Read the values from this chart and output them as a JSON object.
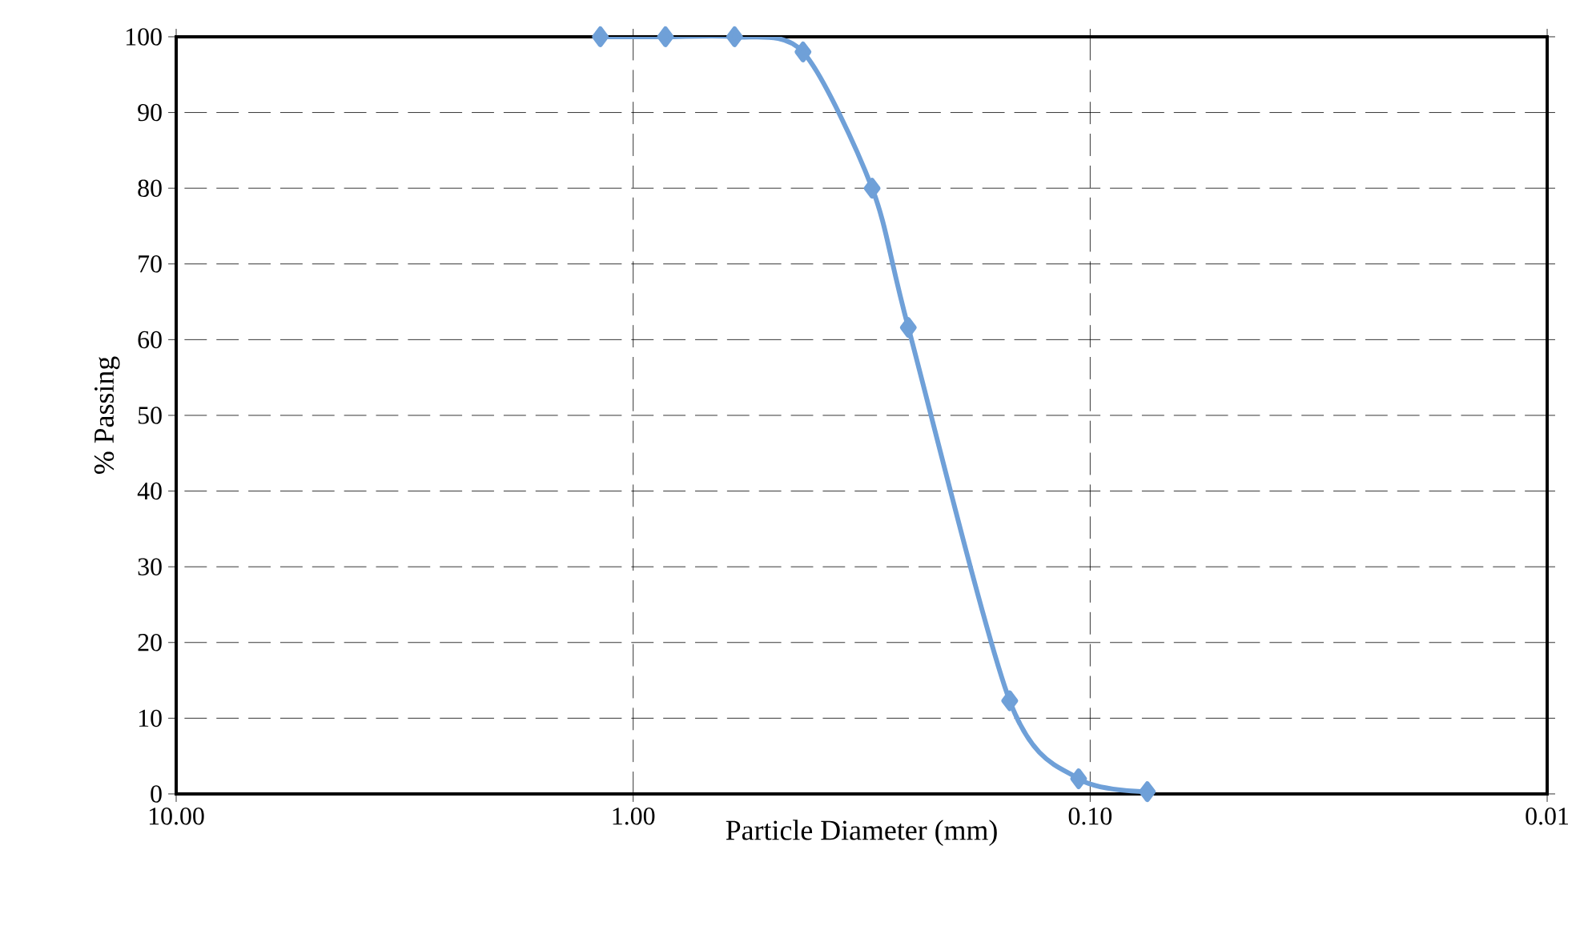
{
  "chart_data": {
    "type": "line",
    "xlabel": "Particle Diameter (mm)",
    "ylabel": "% Passing",
    "x": [
      1.18,
      0.85,
      0.6,
      0.425,
      0.3,
      0.25,
      0.15,
      0.106,
      0.075
    ],
    "values": [
      100,
      100,
      100,
      98,
      80,
      61.6,
      12.3,
      2,
      0.3
    ],
    "color": "#6fa0d8",
    "marker": "diamond",
    "log": "x",
    "grid": true,
    "xlim": [
      10,
      0.01
    ],
    "ylim": [
      0,
      100
    ],
    "xticks": [
      {
        "value": 10,
        "label": "10.00"
      },
      {
        "value": 1,
        "label": "1.00"
      },
      {
        "value": 0.1,
        "label": "0.10"
      },
      {
        "value": 0.01,
        "label": "0.01"
      }
    ],
    "yticks": [
      0,
      10,
      20,
      30,
      40,
      50,
      60,
      70,
      80,
      90,
      100
    ]
  }
}
